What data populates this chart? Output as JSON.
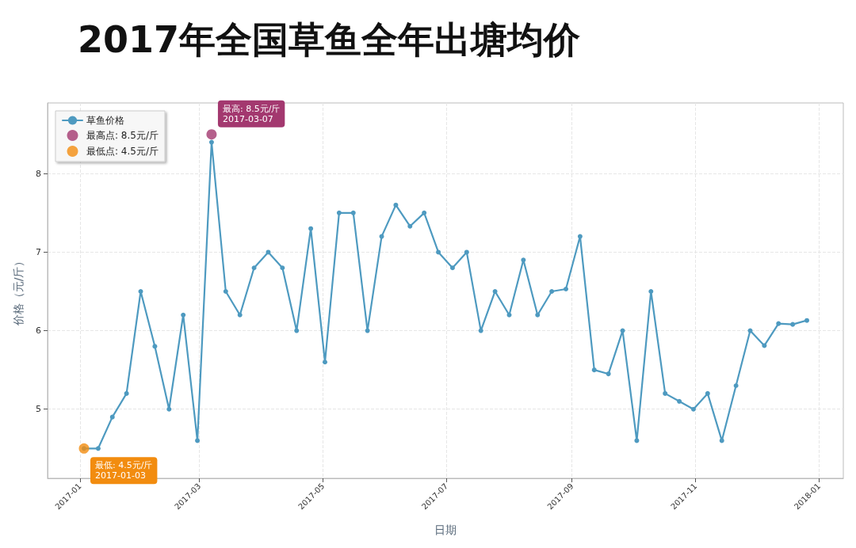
{
  "chart_data": {
    "type": "line",
    "title": "2017年全国草鱼全年出塘均价",
    "xlabel": "日期",
    "ylabel": "价格（元/斤）",
    "x": [
      "2017-01-03",
      "2017-01-10",
      "2017-01-17",
      "2017-01-24",
      "2017-01-31",
      "2017-02-07",
      "2017-02-14",
      "2017-02-21",
      "2017-02-28",
      "2017-03-07",
      "2017-03-14",
      "2017-03-21",
      "2017-03-28",
      "2017-04-04",
      "2017-04-11",
      "2017-04-18",
      "2017-04-25",
      "2017-05-02",
      "2017-05-09",
      "2017-05-16",
      "2017-05-23",
      "2017-05-30",
      "2017-06-06",
      "2017-06-13",
      "2017-06-20",
      "2017-06-27",
      "2017-07-04",
      "2017-07-11",
      "2017-07-18",
      "2017-07-25",
      "2017-08-01",
      "2017-08-08",
      "2017-08-15",
      "2017-08-22",
      "2017-08-29",
      "2017-09-05",
      "2017-09-12",
      "2017-09-19",
      "2017-09-26",
      "2017-10-03",
      "2017-10-10",
      "2017-10-17",
      "2017-10-24",
      "2017-10-31",
      "2017-11-07",
      "2017-11-14",
      "2017-11-21",
      "2017-11-28",
      "2017-12-05",
      "2017-12-12",
      "2017-12-19",
      "2017-12-26"
    ],
    "series": [
      {
        "name": "草鱼价格",
        "color": "#4e9ac0",
        "marker": "circle",
        "values": [
          4.5,
          4.5,
          4.9,
          5.2,
          6.5,
          5.8,
          5.0,
          6.2,
          4.6,
          8.4,
          6.5,
          6.2,
          6.8,
          7.0,
          6.8,
          6.0,
          7.3,
          5.6,
          7.5,
          7.5,
          6.0,
          7.2,
          7.6,
          7.33,
          7.5,
          7.0,
          6.8,
          7.0,
          6.0,
          6.5,
          6.2,
          6.9,
          6.2,
          6.5,
          6.53,
          7.2,
          5.5,
          5.45,
          6.0,
          4.6,
          6.5,
          5.2,
          5.1,
          5.0,
          5.2,
          4.6,
          5.3,
          6.0,
          5.81,
          6.09,
          6.08,
          6.13
        ]
      },
      {
        "name": "最高点: 8.5元/斤",
        "type": "scatter",
        "color": "#a3386f",
        "x": [
          "2017-03-07"
        ],
        "values": [
          8.5
        ]
      },
      {
        "name": "最低点: 4.5元/斤",
        "type": "scatter",
        "color": "#f28c0f",
        "x": [
          "2017-01-03"
        ],
        "values": [
          4.5
        ]
      }
    ],
    "annotations": [
      {
        "text": "最高: 8.5元/斤\n2017-03-07",
        "x": "2017-03-07",
        "y": 8.5
      },
      {
        "text": "最低: 4.5元/斤\n2017-01-03",
        "x": "2017-01-03",
        "y": 4.5
      }
    ],
    "xlim": [
      "2016-12-16",
      "2018-01-13"
    ],
    "xticks": [
      {
        "value": "2017-01-01",
        "label": "2017-01"
      },
      {
        "value": "2017-03-01",
        "label": "2017-03"
      },
      {
        "value": "2017-05-01",
        "label": "2017-05"
      },
      {
        "value": "2017-07-01",
        "label": "2017-07"
      },
      {
        "value": "2017-09-01",
        "label": "2017-09"
      },
      {
        "value": "2017-11-01",
        "label": "2017-11"
      },
      {
        "value": "2018-01-01",
        "label": "2018-01"
      }
    ],
    "ylim": [
      4.12,
      8.9
    ],
    "yticks": [
      5,
      6,
      7,
      8
    ],
    "grid": true,
    "legend": "top left"
  }
}
